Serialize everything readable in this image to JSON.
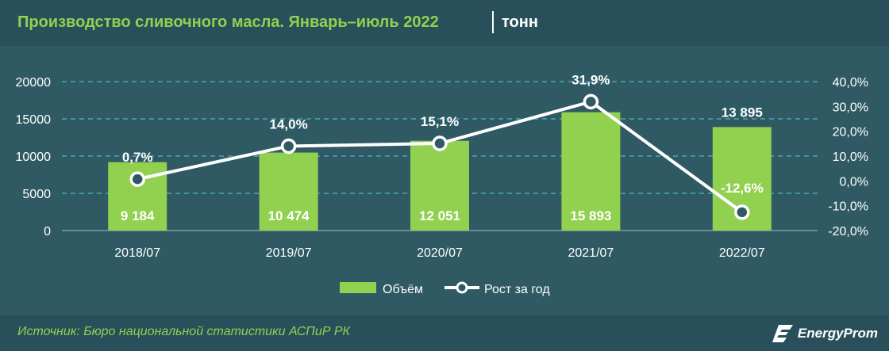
{
  "header": {
    "title": "Производство сливочного масла. Январь–июль 2022",
    "unit": "тонн"
  },
  "footer": {
    "source": "Источник: Бюро национальной статистики АСПиР РК",
    "logo_text": "EnergyProm",
    "logo_icon": "energyprom-logo-icon"
  },
  "colors": {
    "background": "#2f5a64",
    "bar": "#92d050",
    "line": "#ffffff",
    "title": "#92d050",
    "grid": "#4fb3c8"
  },
  "chart_data": {
    "type": "bar",
    "categories": [
      "2018/07",
      "2019/07",
      "2020/07",
      "2021/07",
      "2022/07"
    ],
    "series": [
      {
        "name": "Объём",
        "type": "bar",
        "axis": "left",
        "values": [
          9184,
          10474,
          12051,
          15893,
          13895
        ],
        "labels": [
          "9 184",
          "10 474",
          "12 051",
          "15 893",
          "13 895"
        ]
      },
      {
        "name": "Рост за год",
        "type": "line",
        "axis": "right",
        "values": [
          0.7,
          14.0,
          15.1,
          31.9,
          -12.6
        ],
        "labels": [
          "0,7%",
          "14,0%",
          "15,1%",
          "31,9%",
          "-12,6%"
        ]
      }
    ],
    "y_left": {
      "min": 0,
      "max": 20000,
      "ticks": [
        "0",
        "5000",
        "10000",
        "15000",
        "20000"
      ]
    },
    "y_right": {
      "min": -20,
      "max": 40,
      "ticks": [
        "-20,0%",
        "-10,0%",
        "0,0%",
        "10,0%",
        "20,0%",
        "30,0%",
        "40,0%"
      ]
    },
    "grid": true,
    "legend_position": "bottom"
  }
}
